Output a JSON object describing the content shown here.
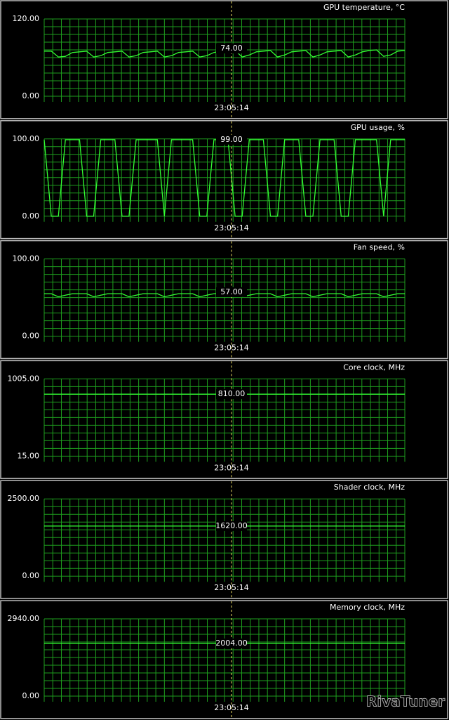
{
  "chart_data": [
    {
      "type": "line",
      "title": "GPU temperature, °C",
      "ylim": [
        0,
        120
      ],
      "yticks": [
        {
          "value": 0,
          "label": "0.00"
        },
        {
          "value": 120,
          "label": "120.00"
        }
      ],
      "grid": true,
      "color": "#33ff33",
      "values": [
        70,
        70,
        61,
        62,
        68,
        69,
        70,
        61,
        63,
        68,
        69,
        70,
        61,
        63,
        68,
        69,
        70,
        61,
        63,
        68,
        69,
        70,
        61,
        63,
        68,
        70,
        71,
        71,
        61,
        64,
        69,
        70,
        71,
        61,
        64,
        69,
        70,
        71,
        61,
        64,
        69,
        70,
        71,
        61,
        64,
        69,
        71,
        72,
        62,
        64,
        70,
        71
      ],
      "cursor": {
        "value": 74,
        "label": "74.00"
      },
      "cursor_time": "23:05:14"
    },
    {
      "type": "line",
      "title": "GPU usage, %",
      "ylim": [
        0,
        100
      ],
      "yticks": [
        {
          "value": 0,
          "label": "0.00"
        },
        {
          "value": 100,
          "label": "100.00"
        }
      ],
      "grid": true,
      "color": "#33ff33",
      "values": [
        99,
        0,
        0,
        99,
        99,
        99,
        0,
        0,
        99,
        99,
        99,
        0,
        0,
        99,
        99,
        99,
        99,
        0,
        99,
        99,
        99,
        99,
        0,
        0,
        99,
        99,
        99,
        0,
        0,
        99,
        99,
        99,
        0,
        0,
        99,
        99,
        99,
        0,
        0,
        99,
        99,
        99,
        0,
        0,
        99,
        99,
        99,
        99,
        0,
        99,
        99,
        99
      ],
      "cursor": {
        "value": 99,
        "label": "99.00"
      },
      "cursor_time": "23:05:14"
    },
    {
      "type": "line",
      "title": "Fan speed, %",
      "ylim": [
        0,
        100
      ],
      "yticks": [
        {
          "value": 0,
          "label": "0.00"
        },
        {
          "value": 100,
          "label": "100.00"
        }
      ],
      "grid": true,
      "color": "#33ff33",
      "values": [
        55,
        55,
        51,
        53,
        55,
        55,
        55,
        51,
        53,
        55,
        55,
        55,
        51,
        53,
        55,
        55,
        55,
        51,
        53,
        55,
        55,
        55,
        51,
        53,
        55,
        55,
        55,
        55,
        51,
        53,
        55,
        55,
        55,
        51,
        53,
        55,
        55,
        55,
        51,
        53,
        55,
        55,
        55,
        51,
        53,
        55,
        55,
        55,
        51,
        53,
        55,
        55
      ],
      "cursor": {
        "value": 57,
        "label": "57.00"
      },
      "cursor_time": "23:05:14"
    },
    {
      "type": "line",
      "title": "Core clock, MHz",
      "ylim": [
        15,
        1005
      ],
      "yticks": [
        {
          "value": 15,
          "label": "15.00"
        },
        {
          "value": 1005,
          "label": "1005.00"
        }
      ],
      "grid": true,
      "color": "#33ff33",
      "values": [
        810,
        810
      ],
      "cursor": {
        "value": 810,
        "label": "810.00"
      },
      "cursor_time": "23:05:14"
    },
    {
      "type": "line",
      "title": "Shader clock, MHz",
      "ylim": [
        0,
        2500
      ],
      "yticks": [
        {
          "value": 0,
          "label": "0.00"
        },
        {
          "value": 2500,
          "label": "2500.00"
        }
      ],
      "grid": true,
      "color": "#33ff33",
      "values": [
        1620,
        1620
      ],
      "cursor": {
        "value": 1620,
        "label": "1620.00"
      },
      "cursor_time": "23:05:14"
    },
    {
      "type": "line",
      "title": "Memory clock, MHz",
      "ylim": [
        0,
        2940
      ],
      "yticks": [
        {
          "value": 0,
          "label": "0.00"
        },
        {
          "value": 2940,
          "label": "2940.00"
        }
      ],
      "grid": true,
      "color": "#33ff33",
      "values": [
        2004,
        2004
      ],
      "cursor": {
        "value": 2004,
        "label": "2004.00"
      },
      "cursor_time": "23:05:14"
    }
  ],
  "watermark": "RivaTuner"
}
